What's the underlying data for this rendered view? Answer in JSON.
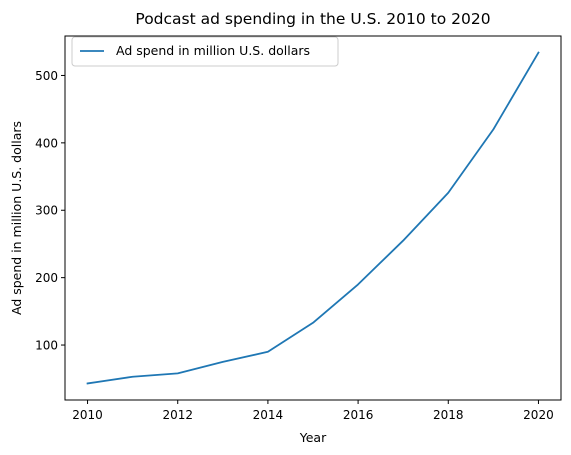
{
  "chart_data": {
    "type": "line",
    "title": "Podcast ad spending in the U.S. 2010 to 2020",
    "xlabel": "Year",
    "ylabel": "Ad spend in million U.S. dollars",
    "x": [
      2010,
      2011,
      2012,
      2013,
      2014,
      2015,
      2016,
      2017,
      2018,
      2019,
      2020
    ],
    "series": [
      {
        "name": "Ad spend in million U.S. dollars",
        "color": "#1f77b4",
        "values": [
          43,
          53,
          58,
          75,
          90,
          133,
          190,
          255,
          326,
          420,
          534
        ]
      }
    ],
    "xticks": [
      2010,
      2012,
      2014,
      2016,
      2018,
      2020
    ],
    "yticks": [
      100,
      200,
      300,
      400,
      500
    ],
    "xlim": [
      2009.5,
      2020.5
    ],
    "ylim": [
      18.45,
      558.55
    ],
    "grid": false,
    "legend": "top-left"
  }
}
